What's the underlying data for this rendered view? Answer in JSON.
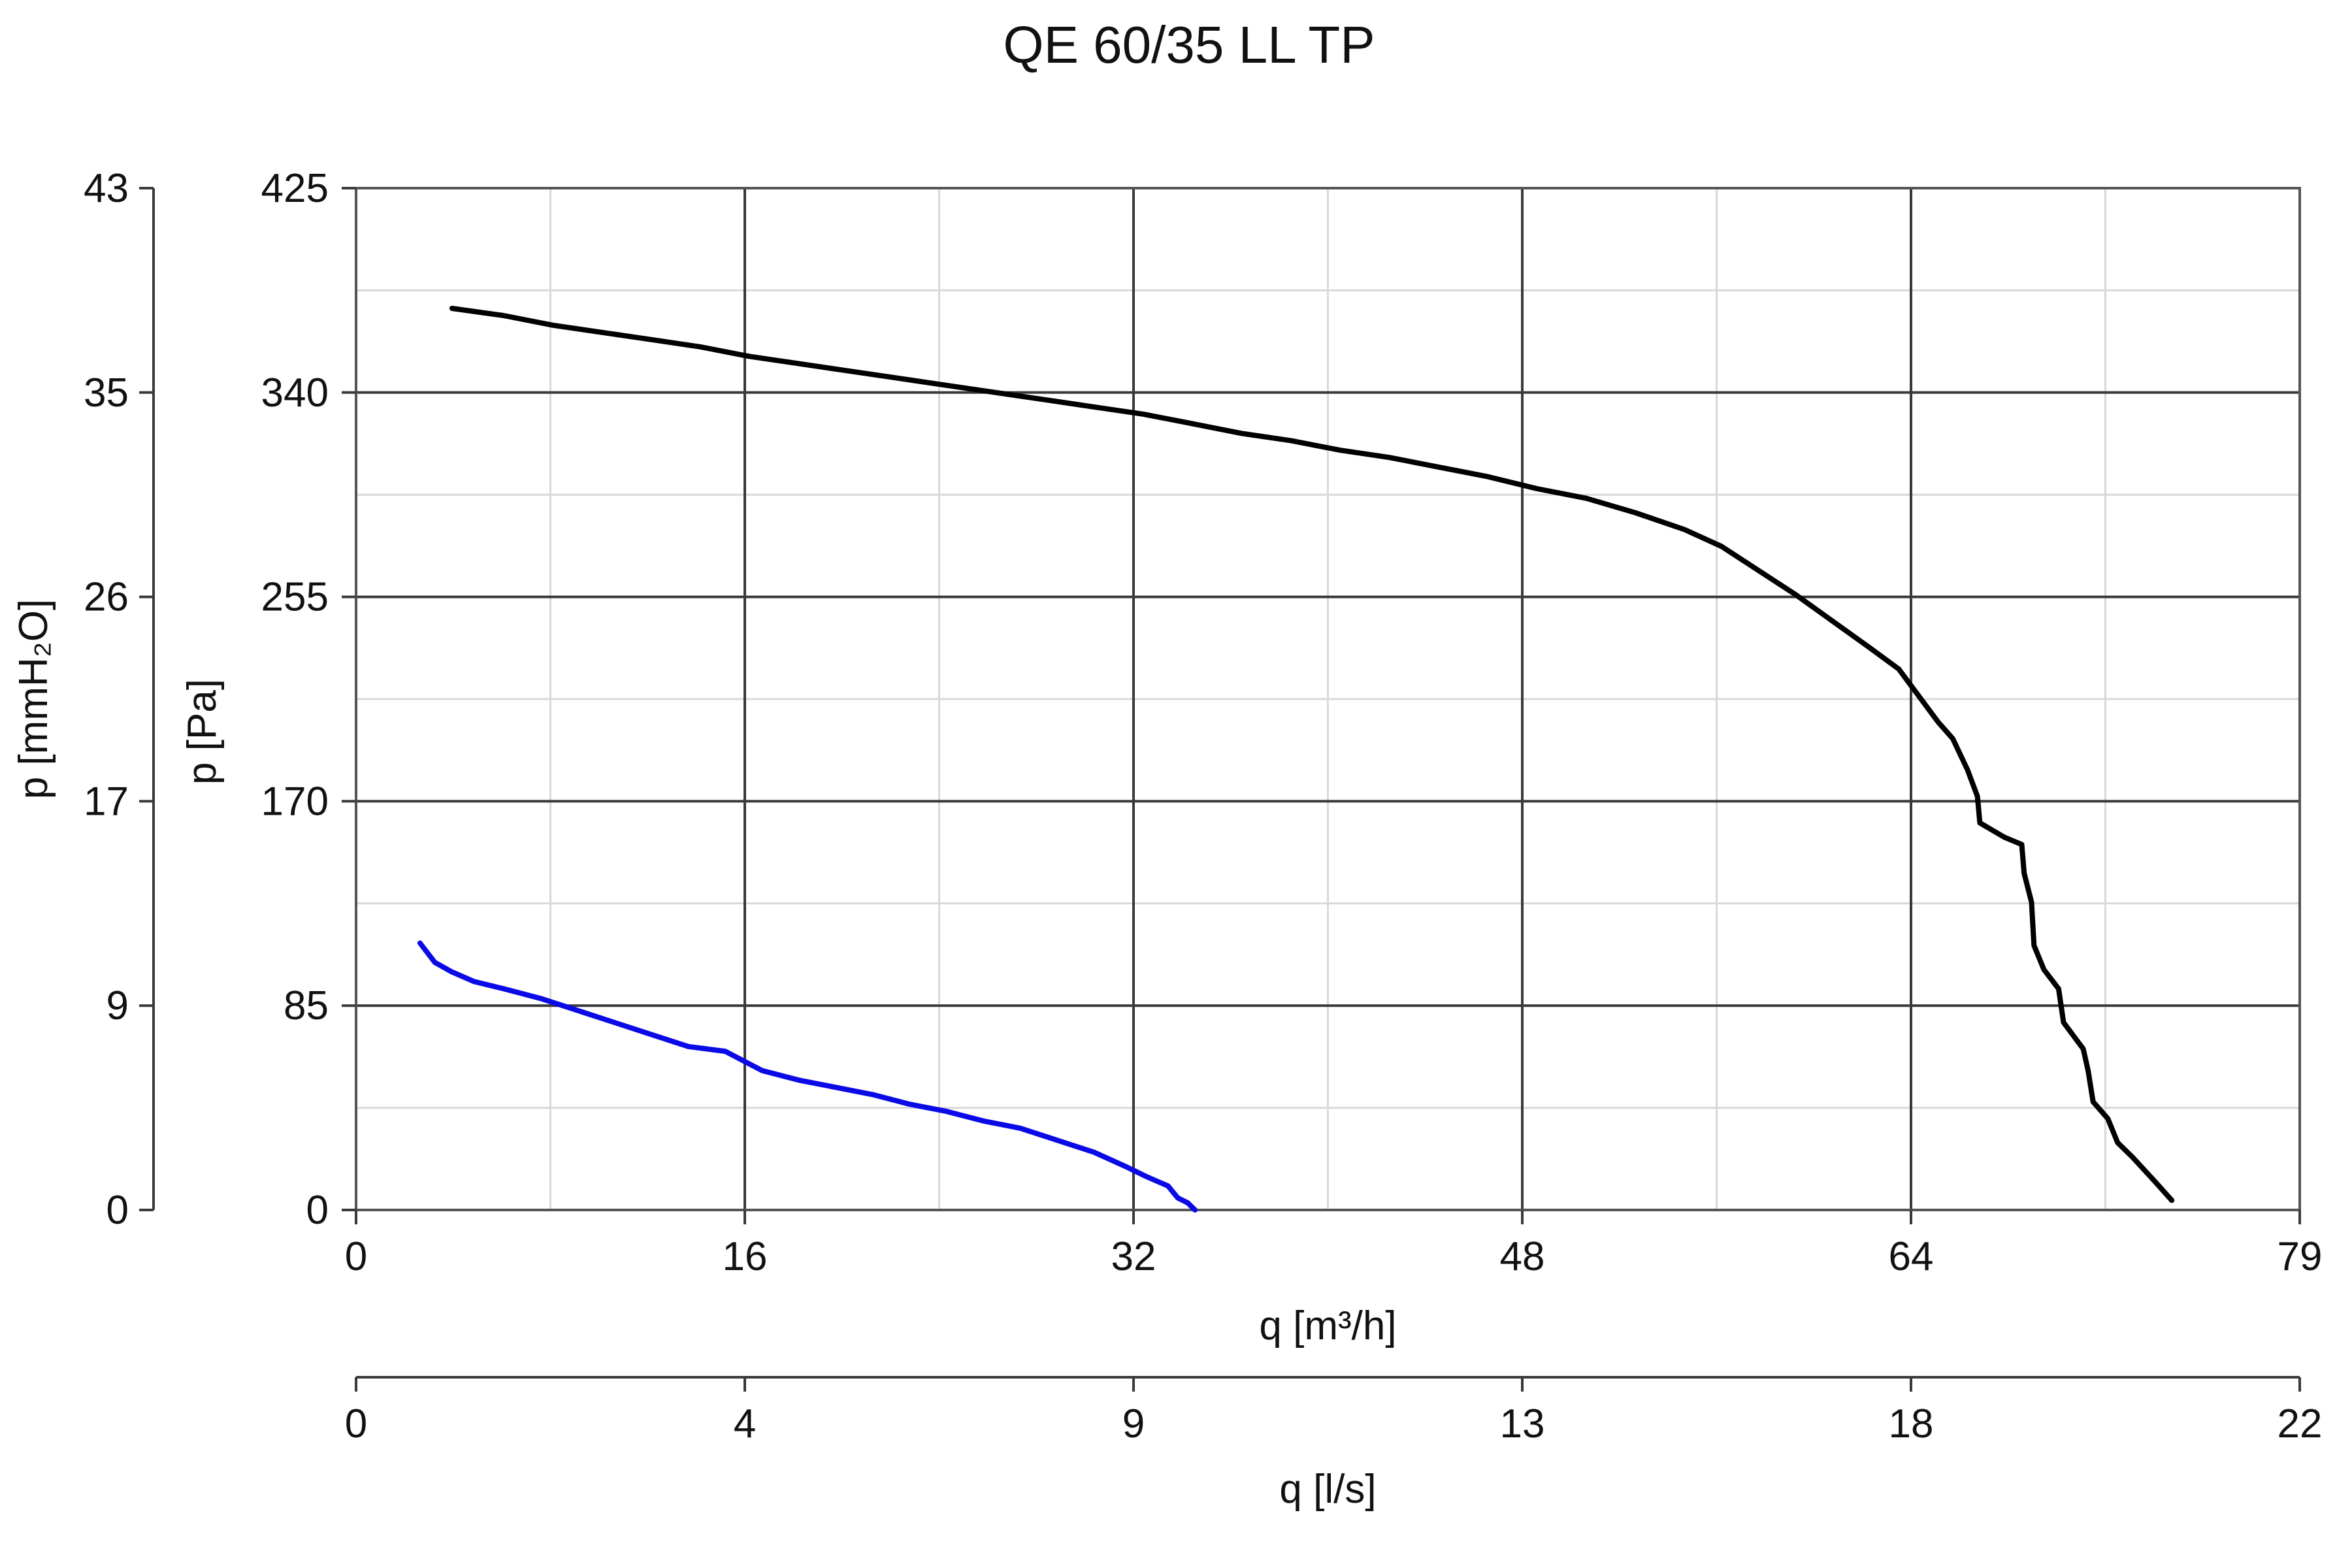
{
  "chart_data": {
    "type": "line",
    "title": "QE 60/35 LL TP",
    "xlabel": "q [m³/h]",
    "ylabel": "p [Pa]",
    "secondary_xlabel": "q [l/s]",
    "secondary_ylabel": "p [mmH₂O]",
    "xlim": [
      0,
      79
    ],
    "ylim": [
      0,
      425
    ],
    "x_ticks": [
      "0",
      "16",
      "32",
      "48",
      "64",
      "79"
    ],
    "y_ticks": [
      "0",
      "85",
      "170",
      "255",
      "340",
      "425"
    ],
    "secondary_x_ticks": [
      "0",
      "4",
      "9",
      "13",
      "18",
      "22"
    ],
    "secondary_y_ticks": [
      "0",
      "9",
      "17",
      "26",
      "35",
      "43"
    ],
    "grid": true,
    "series": [
      {
        "color": "#000000",
        "points": [
          [
            3.9,
            375
          ],
          [
            6,
            372
          ],
          [
            8,
            368
          ],
          [
            10,
            365
          ],
          [
            12,
            362
          ],
          [
            14,
            359
          ],
          [
            16,
            355
          ],
          [
            18,
            352
          ],
          [
            20,
            349
          ],
          [
            22,
            346
          ],
          [
            24,
            343
          ],
          [
            26,
            340
          ],
          [
            28,
            337
          ],
          [
            30,
            334
          ],
          [
            32,
            331
          ],
          [
            34,
            327
          ],
          [
            36,
            323
          ],
          [
            38,
            320
          ],
          [
            40,
            316
          ],
          [
            42,
            313
          ],
          [
            44,
            309
          ],
          [
            46,
            305
          ],
          [
            48,
            300
          ],
          [
            50,
            296
          ],
          [
            52,
            290
          ],
          [
            54,
            283
          ],
          [
            55.5,
            276
          ],
          [
            57,
            266
          ],
          [
            58.5,
            256
          ],
          [
            60,
            245
          ],
          [
            61.5,
            234
          ],
          [
            62.7,
            225
          ],
          [
            63.5,
            214
          ],
          [
            64.3,
            203
          ],
          [
            64.9,
            196
          ],
          [
            65.5,
            183
          ],
          [
            65.9,
            172
          ],
          [
            66,
            161
          ],
          [
            67,
            155
          ],
          [
            67.7,
            152
          ],
          [
            67.8,
            140
          ],
          [
            68.1,
            128
          ],
          [
            68.2,
            110
          ],
          [
            68.6,
            100
          ],
          [
            69.2,
            92
          ],
          [
            69.4,
            78
          ],
          [
            70.2,
            67
          ],
          [
            70.4,
            58
          ],
          [
            70.6,
            45
          ],
          [
            71.2,
            38
          ],
          [
            71.6,
            28
          ],
          [
            72.2,
            22
          ],
          [
            73.1,
            12
          ],
          [
            73.8,
            4
          ]
        ]
      },
      {
        "color": "#0a0ae6",
        "points": [
          [
            2.6,
            111
          ],
          [
            3.2,
            103
          ],
          [
            3.9,
            99
          ],
          [
            4.8,
            95
          ],
          [
            6,
            92
          ],
          [
            7.5,
            88
          ],
          [
            9,
            83
          ],
          [
            10.5,
            78
          ],
          [
            12,
            73
          ],
          [
            13.5,
            68
          ],
          [
            15,
            66
          ],
          [
            16.5,
            58
          ],
          [
            18,
            54
          ],
          [
            19.5,
            51
          ],
          [
            21,
            48
          ],
          [
            22.5,
            44
          ],
          [
            24,
            41
          ],
          [
            25.5,
            37
          ],
          [
            27,
            34
          ],
          [
            28.5,
            29
          ],
          [
            30,
            24
          ],
          [
            31.3,
            18
          ],
          [
            32.1,
            14
          ],
          [
            33,
            10
          ],
          [
            33.4,
            5
          ],
          [
            33.8,
            3
          ],
          [
            34.1,
            0
          ]
        ]
      }
    ]
  }
}
